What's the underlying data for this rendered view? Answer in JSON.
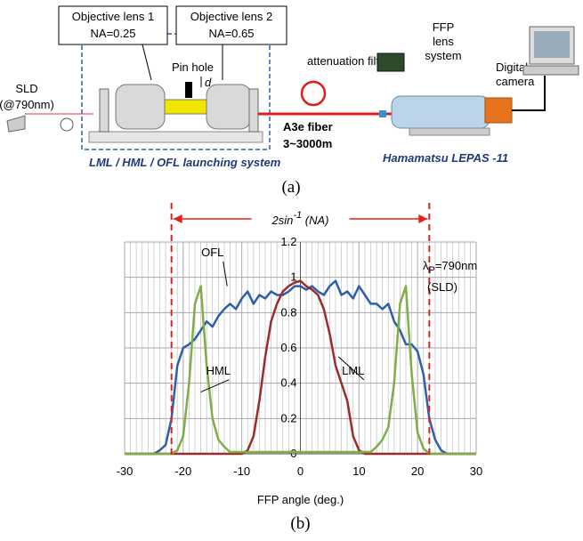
{
  "diagram": {
    "lens1": {
      "name": "Objective lens 1",
      "na": "NA=0.25"
    },
    "lens2": {
      "name": "Objective lens 2",
      "na": "NA=0.65"
    },
    "source": {
      "name": "SLD",
      "wavelength": "(@790nm)"
    },
    "pinhole": "Pin hole",
    "offset": "d",
    "filter": "attenuation filter",
    "ffp": {
      "line1": "FFP",
      "line2": "lens",
      "line3": "system"
    },
    "camera": {
      "line1": "Digital",
      "line2": "camera"
    },
    "fiber": {
      "name": "A3e fiber",
      "length": "3~3000m"
    },
    "launcher": "LML / HML / OFL launching system",
    "instrument": "Hamamatsu LEPAS -11",
    "caption": "(a)"
  },
  "chart_data": {
    "type": "line",
    "caption": "(b)",
    "x_label": "FFP angle (deg.)",
    "span_label": {
      "main": "2sin",
      "sup": "-1",
      "rest": " (NA)"
    },
    "wavelength_label": {
      "main": "λ",
      "sub": "P",
      "rest": "=790nm",
      "note": "(SLD)"
    },
    "ref_lines": [
      -22,
      22
    ],
    "ref_color": "#e0201b",
    "xlim": [
      -30,
      30
    ],
    "xticks": [
      -30,
      -20,
      -10,
      0,
      10,
      20,
      30
    ],
    "ylim": [
      0,
      1.2
    ],
    "yticks": [
      0,
      0.2,
      0.4,
      0.6,
      0.8,
      1,
      1.2
    ],
    "grid": true,
    "minor_grid": true,
    "x": [
      -30,
      -29,
      -28,
      -27,
      -26,
      -25,
      -24,
      -23,
      -22,
      -21,
      -20,
      -19,
      -18,
      -17,
      -16,
      -15,
      -14,
      -13,
      -12,
      -11,
      -10,
      -9,
      -8,
      -7,
      -6,
      -5,
      -4,
      -3,
      -2,
      -1,
      0,
      1,
      2,
      3,
      4,
      5,
      6,
      7,
      8,
      9,
      10,
      11,
      12,
      13,
      14,
      15,
      16,
      17,
      18,
      19,
      20,
      21,
      22,
      23,
      24,
      25,
      26,
      27,
      28,
      29,
      30
    ],
    "series": [
      {
        "name": "OFL",
        "color": "#2f5fa9",
        "values": [
          0,
          0,
          0,
          0,
          0,
          0,
          0.02,
          0.05,
          0.2,
          0.5,
          0.6,
          0.62,
          0.65,
          0.7,
          0.75,
          0.72,
          0.78,
          0.82,
          0.85,
          0.82,
          0.88,
          0.92,
          0.85,
          0.9,
          0.88,
          0.92,
          0.9,
          0.9,
          0.92,
          0.95,
          0.95,
          0.93,
          0.95,
          0.92,
          0.9,
          0.95,
          0.98,
          0.9,
          0.92,
          0.88,
          0.95,
          0.9,
          0.85,
          0.85,
          0.82,
          0.85,
          0.75,
          0.7,
          0.62,
          0.62,
          0.58,
          0.45,
          0.2,
          0.08,
          0.02,
          0,
          0,
          0,
          0,
          0,
          0
        ]
      },
      {
        "name": "LML",
        "color": "#9c2b2a",
        "values": [
          0,
          0,
          0,
          0,
          0,
          0,
          0,
          0,
          0,
          0,
          0,
          0,
          0,
          0,
          0,
          0,
          0,
          0,
          0,
          0,
          0,
          0.02,
          0.1,
          0.3,
          0.55,
          0.75,
          0.85,
          0.92,
          0.95,
          0.97,
          0.98,
          0.95,
          0.93,
          0.9,
          0.82,
          0.68,
          0.5,
          0.4,
          0.3,
          0.1,
          0.02,
          0,
          0,
          0,
          0,
          0,
          0,
          0,
          0,
          0,
          0,
          0,
          0,
          0,
          0,
          0,
          0,
          0,
          0,
          0,
          0
        ]
      },
      {
        "name": "HML",
        "color": "#7fae45",
        "values": [
          0,
          0,
          0,
          0,
          0,
          0,
          0,
          0,
          0,
          0.02,
          0.1,
          0.4,
          0.85,
          0.95,
          0.5,
          0.2,
          0.08,
          0.04,
          0.01,
          0.01,
          0.01,
          0.01,
          0.01,
          0.01,
          0.01,
          0.01,
          0.01,
          0.01,
          0.01,
          0.01,
          0.01,
          0.01,
          0.01,
          0.01,
          0.01,
          0.01,
          0.01,
          0.01,
          0.01,
          0.01,
          0.01,
          0.01,
          0.01,
          0.04,
          0.08,
          0.15,
          0.4,
          0.85,
          0.95,
          0.45,
          0.12,
          0.03,
          0,
          0,
          0,
          0,
          0,
          0,
          0,
          0,
          0
        ]
      }
    ]
  }
}
